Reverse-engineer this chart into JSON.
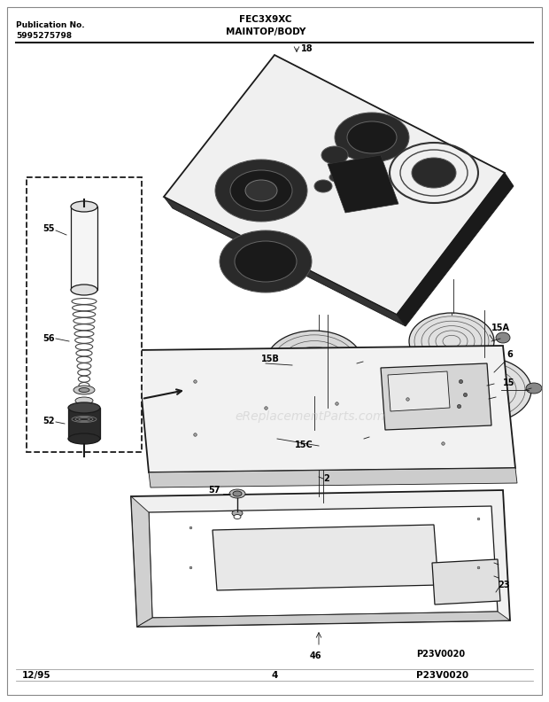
{
  "title": "FEC3X9XC",
  "subtitle": "MAINTOP/BODY",
  "pub_label": "Publication No.",
  "pub_number": "5995275798",
  "date_label": "12/95",
  "page_number": "4",
  "part_number_img": "P23V0020",
  "background_color": "#ffffff",
  "line_color": "#1a1a1a",
  "watermark": "eReplacementParts.com",
  "watermark_color": "#cccccc"
}
